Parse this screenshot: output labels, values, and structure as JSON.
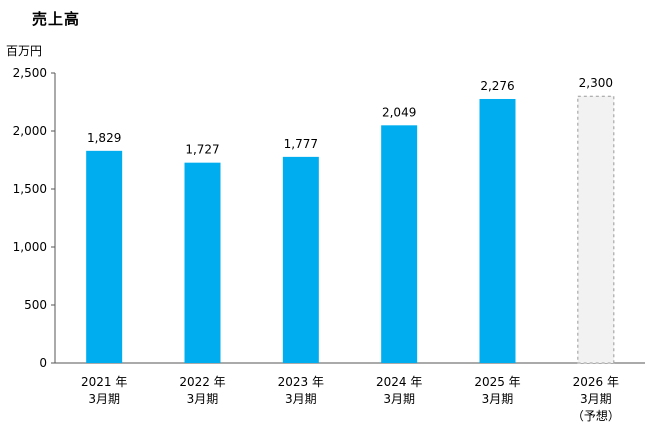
{
  "chart_data": {
    "type": "bar",
    "title": "売上高",
    "ylabel": "百万円",
    "ylim": [
      0,
      2500
    ],
    "yticks": [
      "0",
      "500",
      "1,000",
      "1,500",
      "2,000",
      "2,500"
    ],
    "ytick_values": [
      0,
      500,
      1000,
      1500,
      2000,
      2500
    ],
    "categories": [
      [
        "2021 年",
        "3月期"
      ],
      [
        "2022 年",
        "3月期"
      ],
      [
        "2023 年",
        "3月期"
      ],
      [
        "2024 年",
        "3月期"
      ],
      [
        "2025 年",
        "3月期"
      ],
      [
        "2026 年",
        "3月期",
        "（予想）"
      ]
    ],
    "values": [
      1829,
      1727,
      1777,
      2049,
      2276,
      2300
    ],
    "value_labels": [
      "1,829",
      "1,727",
      "1,777",
      "2,049",
      "2,276",
      "2,300"
    ],
    "forecast": [
      false,
      false,
      false,
      false,
      false,
      true
    ],
    "grid": false,
    "colors": {
      "bar": "#00AEEF",
      "forecast_fill": "#F2F2F2",
      "forecast_border": "#999999",
      "axis": "#555555"
    }
  }
}
